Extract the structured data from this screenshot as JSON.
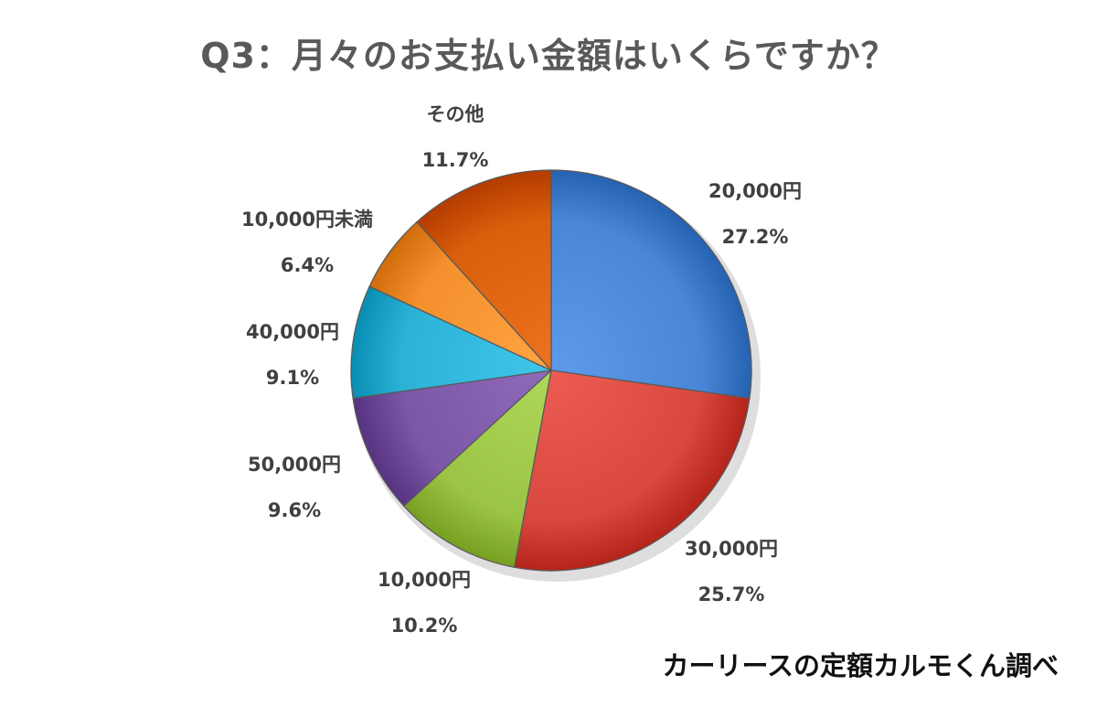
{
  "chart_data": {
    "type": "pie",
    "title": "Q3：月々のお支払い金額はいくらですか？",
    "slices": [
      {
        "label": "20,000円",
        "value_text": "27.2%",
        "value": 27.2,
        "color": "#4a86d6"
      },
      {
        "label": "30,000円",
        "value_text": "25.7%",
        "value": 25.7,
        "color": "#d9483f"
      },
      {
        "label": "10,000円",
        "value_text": "10.2%",
        "value": 10.2,
        "color": "#9bc445"
      },
      {
        "label": "50,000円",
        "value_text": "9.6%",
        "value": 9.6,
        "color": "#7b57a6"
      },
      {
        "label": "40,000円",
        "value_text": "9.1%",
        "value": 9.1,
        "color": "#2cb2d6"
      },
      {
        "label": "10,000円未満",
        "value_text": "6.4%",
        "value": 6.4,
        "color": "#f4902d"
      },
      {
        "label": "その他",
        "value_text": "11.7%",
        "value": 11.7,
        "color": "#d95f0c"
      }
    ],
    "start": "12 o'clock",
    "direction": "clockwise",
    "legend": "none"
  },
  "footer": {
    "source": "カーリースの定額カルモくん調べ"
  }
}
